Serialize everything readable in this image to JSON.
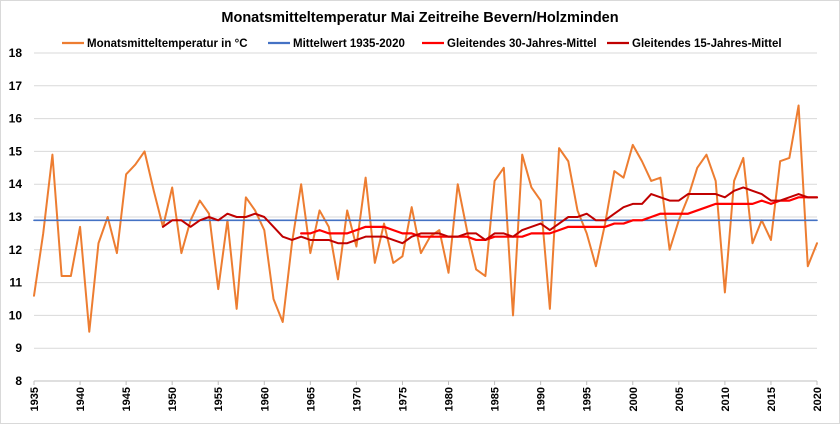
{
  "chart_data": {
    "type": "line",
    "title": "Monatsmitteltemperatur Mai Zeitreihe Bevern/Holzminden",
    "xlabel": "",
    "ylabel": "",
    "xlim": [
      1935,
      2020
    ],
    "ylim": [
      8,
      18
    ],
    "y_ticks": [
      8,
      9,
      10,
      11,
      12,
      13,
      14,
      15,
      16,
      17,
      18
    ],
    "x_ticks": [
      1935,
      1940,
      1945,
      1950,
      1955,
      1960,
      1965,
      1970,
      1975,
      1980,
      1985,
      1990,
      1995,
      2000,
      2005,
      2010,
      2015,
      2020
    ],
    "grid": "horizontal",
    "legend_position": "top",
    "x": [
      1935,
      1936,
      1937,
      1938,
      1939,
      1940,
      1941,
      1942,
      1943,
      1944,
      1945,
      1946,
      1947,
      1948,
      1949,
      1950,
      1951,
      1952,
      1953,
      1954,
      1955,
      1956,
      1957,
      1958,
      1959,
      1960,
      1961,
      1962,
      1963,
      1964,
      1965,
      1966,
      1967,
      1968,
      1969,
      1970,
      1971,
      1972,
      1973,
      1974,
      1975,
      1976,
      1977,
      1978,
      1979,
      1980,
      1981,
      1982,
      1983,
      1984,
      1985,
      1986,
      1987,
      1988,
      1989,
      1990,
      1991,
      1992,
      1993,
      1994,
      1995,
      1996,
      1997,
      1998,
      1999,
      2000,
      2001,
      2002,
      2003,
      2004,
      2005,
      2006,
      2007,
      2008,
      2009,
      2010,
      2011,
      2012,
      2013,
      2014,
      2015,
      2016,
      2017,
      2018,
      2019,
      2020
    ],
    "series": [
      {
        "name": "Monatsmitteltemperatur in °C",
        "color": "#ed7d31",
        "values": [
          10.6,
          12.5,
          14.9,
          11.2,
          11.2,
          12.7,
          9.5,
          12.2,
          13.0,
          11.9,
          14.3,
          14.6,
          15.0,
          13.8,
          12.7,
          13.9,
          11.9,
          12.9,
          13.5,
          13.1,
          10.8,
          12.9,
          10.2,
          13.6,
          13.2,
          12.6,
          10.5,
          9.8,
          12.2,
          14.0,
          11.9,
          13.2,
          12.7,
          11.1,
          13.2,
          12.1,
          14.2,
          11.6,
          12.8,
          11.6,
          11.8,
          13.3,
          11.9,
          12.4,
          12.6,
          11.3,
          14.0,
          12.6,
          11.4,
          11.2,
          14.1,
          14.5,
          10.0,
          14.9,
          13.9,
          13.5,
          10.2,
          15.1,
          14.7,
          13.2,
          12.5,
          11.5,
          12.8,
          14.4,
          14.2,
          15.2,
          14.7,
          14.1,
          14.2,
          12.0,
          12.9,
          13.6,
          14.5,
          14.9,
          14.1,
          10.7,
          14.1,
          14.8,
          12.2,
          12.9,
          12.3,
          14.7,
          14.8,
          16.4,
          11.5,
          12.2
        ]
      },
      {
        "name": "Mittelwert 1935-2020",
        "color": "#4472c4",
        "values": [
          12.9,
          12.9,
          12.9,
          12.9,
          12.9,
          12.9,
          12.9,
          12.9,
          12.9,
          12.9,
          12.9,
          12.9,
          12.9,
          12.9,
          12.9,
          12.9,
          12.9,
          12.9,
          12.9,
          12.9,
          12.9,
          12.9,
          12.9,
          12.9,
          12.9,
          12.9,
          12.9,
          12.9,
          12.9,
          12.9,
          12.9,
          12.9,
          12.9,
          12.9,
          12.9,
          12.9,
          12.9,
          12.9,
          12.9,
          12.9,
          12.9,
          12.9,
          12.9,
          12.9,
          12.9,
          12.9,
          12.9,
          12.9,
          12.9,
          12.9,
          12.9,
          12.9,
          12.9,
          12.9,
          12.9,
          12.9,
          12.9,
          12.9,
          12.9,
          12.9,
          12.9,
          12.9,
          12.9,
          12.9,
          12.9,
          12.9,
          12.9,
          12.9,
          12.9,
          12.9,
          12.9,
          12.9,
          12.9,
          12.9,
          12.9,
          12.9,
          12.9,
          12.9,
          12.9,
          12.9,
          12.9,
          12.9,
          12.9,
          12.9,
          12.9,
          12.9
        ]
      },
      {
        "name": "Gleitendes 30-Jahres-Mittel",
        "color": "#ff0000",
        "values": [
          null,
          null,
          null,
          null,
          null,
          null,
          null,
          null,
          null,
          null,
          null,
          null,
          null,
          null,
          null,
          null,
          null,
          null,
          null,
          null,
          null,
          null,
          null,
          null,
          null,
          null,
          null,
          null,
          null,
          12.5,
          12.5,
          12.6,
          12.5,
          12.5,
          12.5,
          12.6,
          12.7,
          12.7,
          12.7,
          12.6,
          12.5,
          12.5,
          12.4,
          12.4,
          12.4,
          12.4,
          12.4,
          12.4,
          12.3,
          12.3,
          12.4,
          12.4,
          12.4,
          12.4,
          12.5,
          12.5,
          12.5,
          12.6,
          12.7,
          12.7,
          12.7,
          12.7,
          12.7,
          12.8,
          12.8,
          12.9,
          12.9,
          13.0,
          13.1,
          13.1,
          13.1,
          13.1,
          13.2,
          13.3,
          13.4,
          13.4,
          13.4,
          13.4,
          13.4,
          13.5,
          13.4,
          13.5,
          13.5,
          13.6,
          13.6,
          13.6
        ]
      },
      {
        "name": "Gleitendes 15-Jahres-Mittel",
        "color": "#c00000",
        "values": [
          null,
          null,
          null,
          null,
          null,
          null,
          null,
          null,
          null,
          null,
          null,
          null,
          null,
          null,
          12.7,
          12.9,
          12.9,
          12.7,
          12.9,
          13.0,
          12.9,
          13.1,
          13.0,
          13.0,
          13.1,
          13.0,
          12.7,
          12.4,
          12.3,
          12.4,
          12.3,
          12.3,
          12.3,
          12.2,
          12.2,
          12.3,
          12.4,
          12.4,
          12.4,
          12.3,
          12.2,
          12.4,
          12.5,
          12.5,
          12.5,
          12.4,
          12.4,
          12.5,
          12.5,
          12.3,
          12.5,
          12.5,
          12.4,
          12.6,
          12.7,
          12.8,
          12.6,
          12.8,
          13.0,
          13.0,
          13.1,
          12.9,
          12.9,
          13.1,
          13.3,
          13.4,
          13.4,
          13.7,
          13.6,
          13.5,
          13.5,
          13.7,
          13.7,
          13.7,
          13.7,
          13.6,
          13.8,
          13.9,
          13.8,
          13.7,
          13.5,
          13.5,
          13.6,
          13.7,
          13.6,
          13.6
        ]
      }
    ]
  }
}
